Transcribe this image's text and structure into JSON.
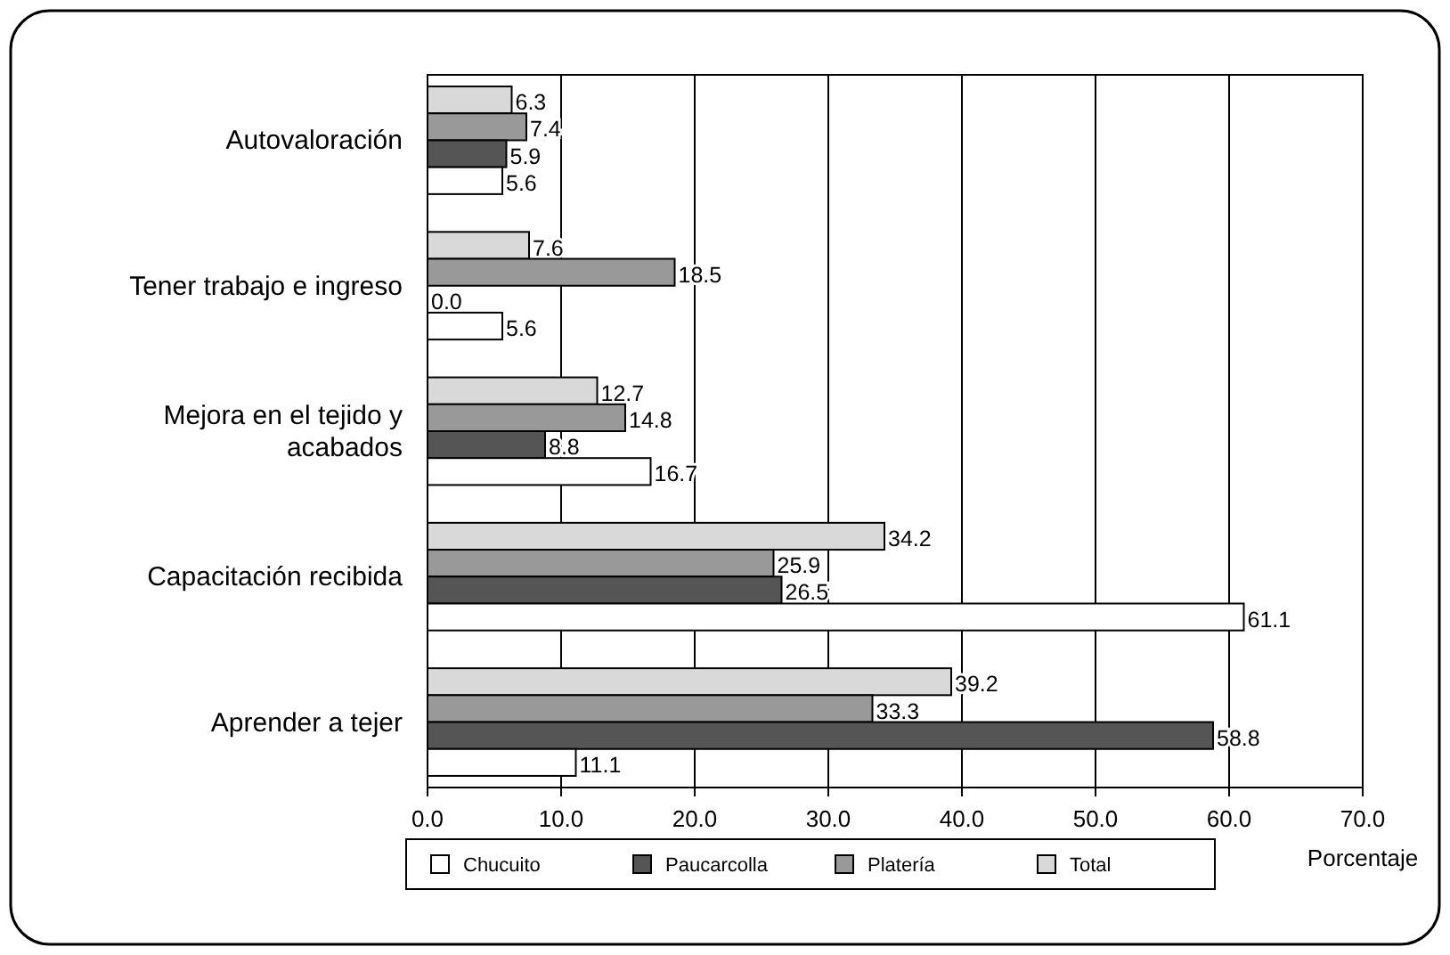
{
  "chart_data": {
    "type": "bar",
    "orientation": "horizontal",
    "xlabel": "Porcentaje",
    "categories": [
      "Autovaloración",
      "Tener trabajo e ingreso",
      "Mejora en el tejido y acabados",
      "Capacitación recibida",
      "Aprender a tejer"
    ],
    "series": [
      {
        "name": "Chucuito",
        "color": "#ffffff",
        "values": [
          5.6,
          5.6,
          16.7,
          61.1,
          11.1
        ],
        "value_labels": [
          "5.6",
          "5.6",
          "16.7",
          "61.1",
          "11.1"
        ]
      },
      {
        "name": "Paucarcolla",
        "color": "#555555",
        "values": [
          5.9,
          0.0,
          8.8,
          26.5,
          58.8
        ],
        "value_labels": [
          "5.9",
          "0.0",
          "8.8",
          "26.5",
          "58.8"
        ]
      },
      {
        "name": "Platería",
        "color": "#999999",
        "values": [
          7.4,
          18.5,
          14.8,
          25.9,
          33.3
        ],
        "value_labels": [
          "7.4",
          "18.5",
          "14.8",
          "25.9",
          "33.3"
        ]
      },
      {
        "name": "Total",
        "color": "#d9d9d9",
        "values": [
          6.3,
          7.6,
          12.7,
          34.2,
          39.2
        ],
        "value_labels": [
          "6.3",
          "7.6",
          "12.7",
          "34.2",
          "39.2"
        ]
      }
    ],
    "xlim": [
      0,
      70
    ],
    "xticks": [
      {
        "value": 0,
        "label": "0.0"
      },
      {
        "value": 10,
        "label": "10.0"
      },
      {
        "value": 20,
        "label": "20.0"
      },
      {
        "value": 30,
        "label": "30.0"
      },
      {
        "value": 40,
        "label": "40.0"
      },
      {
        "value": 50,
        "label": "50.0"
      },
      {
        "value": 60,
        "label": "60.0"
      },
      {
        "value": 70,
        "label": "70.0"
      }
    ],
    "grid": "x",
    "legend": "bottom"
  }
}
